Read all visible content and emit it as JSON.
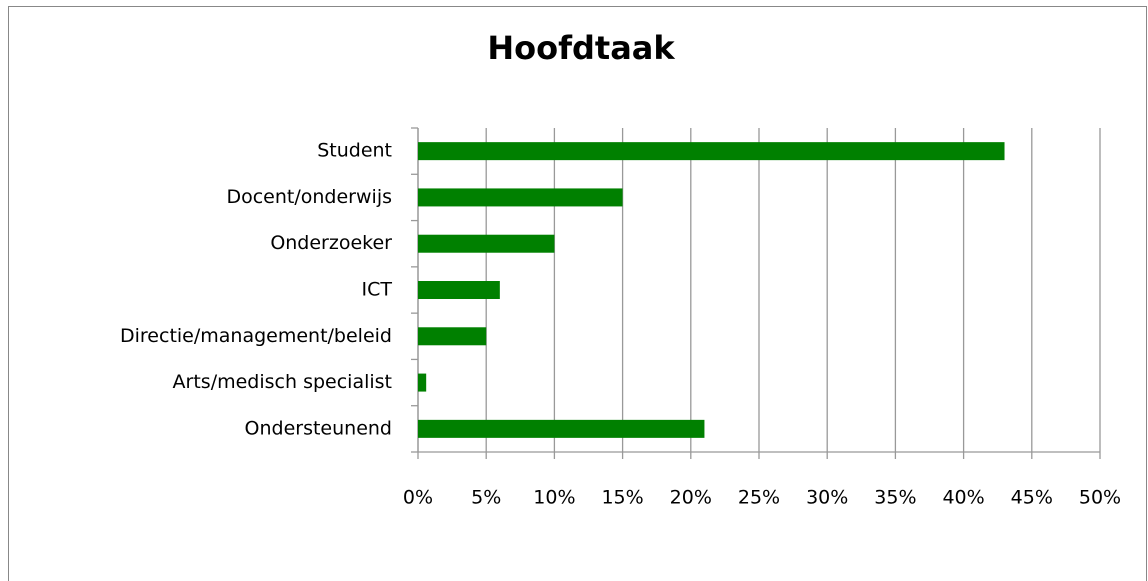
{
  "chart_data": {
    "type": "bar",
    "orientation": "horizontal",
    "title": "Hoofdtaak",
    "categories": [
      "Student",
      "Docent/onderwijs",
      "Onderzoeker",
      "ICT",
      "Directie/management/beleid",
      "Arts/medisch specialist",
      "Ondersteunend"
    ],
    "values": [
      43,
      15,
      10,
      6,
      5,
      0.6,
      21
    ],
    "color": "#008000",
    "xlim": [
      0,
      50
    ],
    "xticks": [
      {
        "value": 0,
        "label": "0%"
      },
      {
        "value": 5,
        "label": "5%"
      },
      {
        "value": 10,
        "label": "10%"
      },
      {
        "value": 15,
        "label": "15%"
      },
      {
        "value": 20,
        "label": "20%"
      },
      {
        "value": 25,
        "label": "25%"
      },
      {
        "value": 30,
        "label": "30%"
      },
      {
        "value": 35,
        "label": "35%"
      },
      {
        "value": 40,
        "label": "40%"
      },
      {
        "value": 45,
        "label": "45%"
      },
      {
        "value": 50,
        "label": "50%"
      }
    ],
    "grid": true
  }
}
